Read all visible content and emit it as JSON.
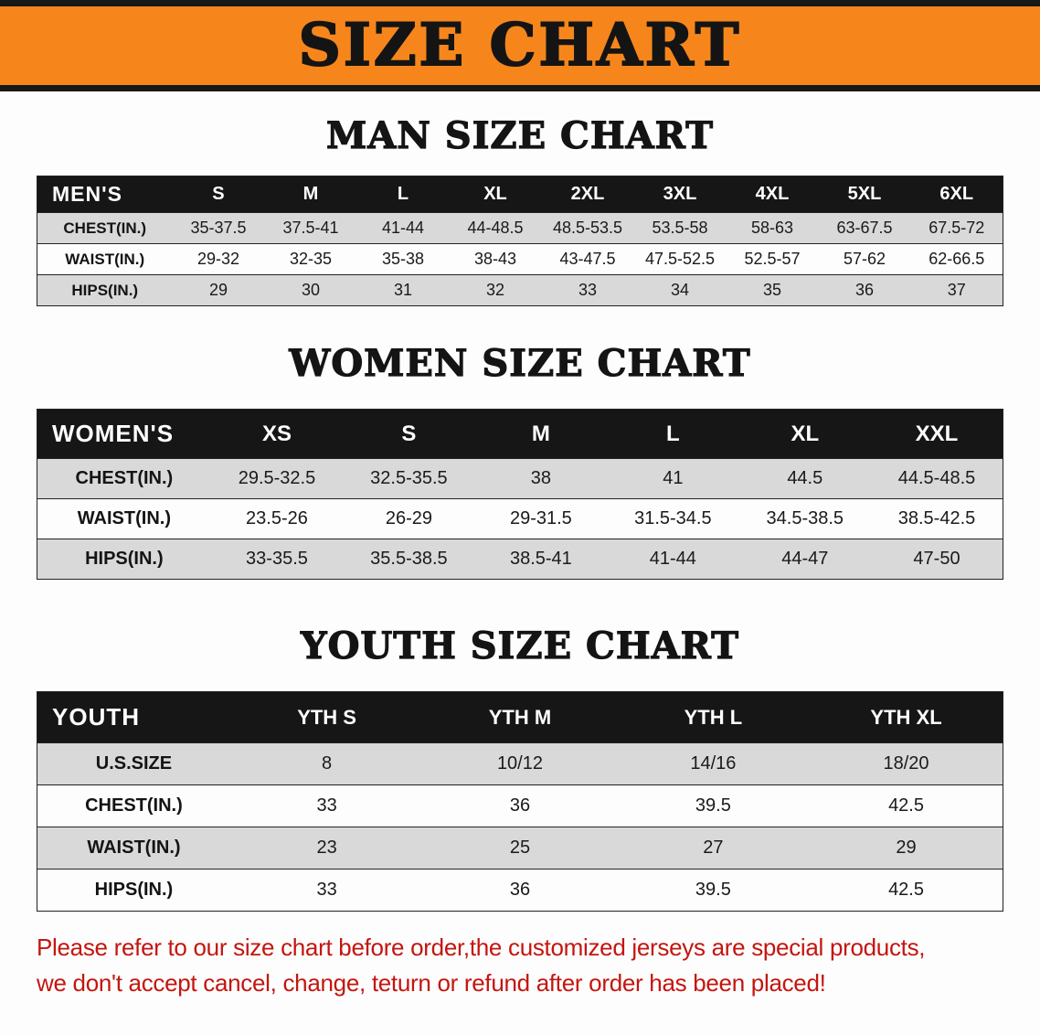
{
  "banner": {
    "title": "SIZE CHART",
    "background": "#f6861c"
  },
  "sections": [
    {
      "title": "MAN SIZE CHART",
      "table": {
        "header": [
          "MEN'S",
          "S",
          "M",
          "L",
          "XL",
          "2XL",
          "3XL",
          "4XL",
          "5XL",
          "6XL"
        ],
        "rows": [
          {
            "label": "CHEST(IN.)",
            "values": [
              "35-37.5",
              "37.5-41",
              "41-44",
              "44-48.5",
              "48.5-53.5",
              "53.5-58",
              "58-63",
              "63-67.5",
              "67.5-72"
            ]
          },
          {
            "label": "WAIST(IN.)",
            "values": [
              "29-32",
              "32-35",
              "35-38",
              "38-43",
              "43-47.5",
              "47.5-52.5",
              "52.5-57",
              "57-62",
              "62-66.5"
            ]
          },
          {
            "label": "HIPS(IN.)",
            "values": [
              "29",
              "30",
              "31",
              "32",
              "33",
              "34",
              "35",
              "36",
              "37"
            ]
          }
        ]
      }
    },
    {
      "title": "WOMEN SIZE CHART",
      "table": {
        "header": [
          "WOMEN'S",
          "XS",
          "S",
          "M",
          "L",
          "XL",
          "XXL"
        ],
        "rows": [
          {
            "label": "CHEST(IN.)",
            "values": [
              "29.5-32.5",
              "32.5-35.5",
              "38",
              "41",
              "44.5",
              "44.5-48.5"
            ]
          },
          {
            "label": "WAIST(IN.)",
            "values": [
              "23.5-26",
              "26-29",
              "29-31.5",
              "31.5-34.5",
              "34.5-38.5",
              "38.5-42.5"
            ]
          },
          {
            "label": "HIPS(IN.)",
            "values": [
              "33-35.5",
              "35.5-38.5",
              "38.5-41",
              "41-44",
              "44-47",
              "47-50"
            ]
          }
        ]
      }
    },
    {
      "title": "YOUTH SIZE CHART",
      "table": {
        "header": [
          "YOUTH",
          "YTH S",
          "YTH M",
          "YTH L",
          "YTH XL"
        ],
        "rows": [
          {
            "label": "U.S.SIZE",
            "values": [
              "8",
              "10/12",
              "14/16",
              "18/20"
            ]
          },
          {
            "label": "CHEST(IN.)",
            "values": [
              "33",
              "36",
              "39.5",
              "42.5"
            ]
          },
          {
            "label": "WAIST(IN.)",
            "values": [
              "23",
              "25",
              "27",
              "29"
            ]
          },
          {
            "label": "HIPS(IN.)",
            "values": [
              "33",
              "36",
              "39.5",
              "42.5"
            ]
          }
        ]
      }
    }
  ],
  "footer": {
    "lines": [
      "Please refer to our size chart before order,the customized jerseys are special products,",
      "we don't accept cancel, change, teturn or refund after order has been placed!"
    ],
    "color": "#c4150f"
  }
}
